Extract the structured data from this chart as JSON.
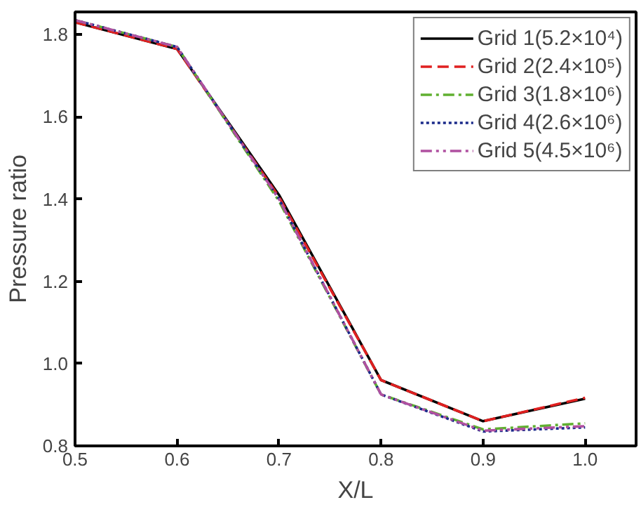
{
  "chart_data": {
    "type": "line",
    "xlabel": "X/L",
    "ylabel": "Pressure ratio",
    "x": [
      0.5,
      0.6,
      0.7,
      0.8,
      0.9,
      1.0
    ],
    "xlim": [
      0.5,
      1.05
    ],
    "xticks": [
      {
        "value": 0.5,
        "label": "0.5"
      },
      {
        "value": 0.6,
        "label": "0.6"
      },
      {
        "value": 0.7,
        "label": "0.7"
      },
      {
        "value": 0.8,
        "label": "0.8"
      },
      {
        "value": 0.9,
        "label": "0.9"
      },
      {
        "value": 1.0,
        "label": "1.0"
      }
    ],
    "ylim": [
      0.8,
      1.855
    ],
    "yticks": [
      {
        "value": 0.8,
        "label": "0.8"
      },
      {
        "value": 1.0,
        "label": "1.0"
      },
      {
        "value": 1.2,
        "label": "1.2"
      },
      {
        "value": 1.4,
        "label": "1.4"
      },
      {
        "value": 1.6,
        "label": "1.6"
      },
      {
        "value": 1.8,
        "label": "1.8"
      }
    ],
    "grid": false,
    "legend": "top right",
    "series": [
      {
        "name": "Grid 1(5.2×10⁴)",
        "color": "#000000",
        "line_style": "solid",
        "values": [
          1.83,
          1.765,
          1.41,
          0.96,
          0.86,
          0.915
        ]
      },
      {
        "name": "Grid 2(2.4×10⁵)",
        "color": "#e02020",
        "line_style": "dashed",
        "values": [
          1.83,
          1.765,
          1.405,
          0.96,
          0.86,
          0.917
        ]
      },
      {
        "name": "Grid 3(1.8×10⁶)",
        "color": "#60b030",
        "line_style": "dashdot",
        "values": [
          1.835,
          1.77,
          1.395,
          0.925,
          0.84,
          0.855
        ]
      },
      {
        "name": "Grid 4(2.6×10⁶)",
        "color": "#1a2a8a",
        "line_style": "dotted",
        "values": [
          1.835,
          1.77,
          1.4,
          0.925,
          0.835,
          0.845
        ]
      },
      {
        "name": "Grid 5(4.5×10⁶)",
        "color": "#b050a0",
        "line_style": "dashdotdot",
        "values": [
          1.835,
          1.77,
          1.4,
          0.925,
          0.837,
          0.848
        ]
      }
    ]
  }
}
